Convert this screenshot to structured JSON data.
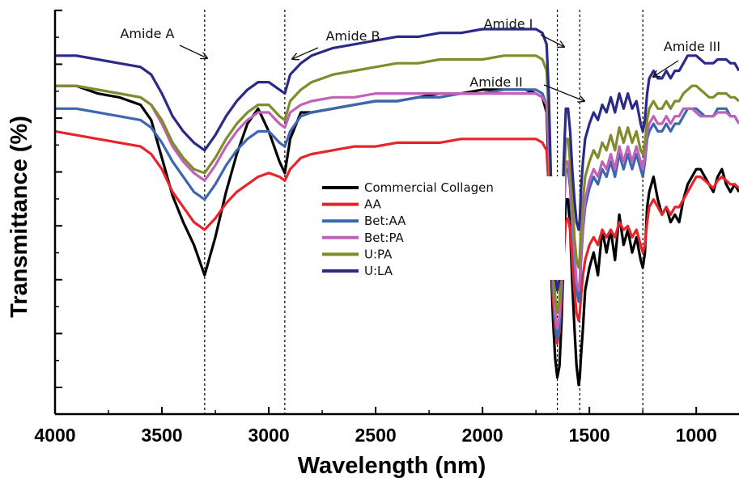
{
  "chart_data": {
    "type": "line",
    "title": "",
    "xlabel": "Wavelength (nm)",
    "ylabel": "Transmittance (%)",
    "xlim": [
      4000,
      800
    ],
    "ylim": [
      0,
      100
    ],
    "xticks": [
      4000,
      3500,
      3000,
      2500,
      2000,
      1500,
      1000
    ],
    "y_tick_labels_shown": false,
    "grid": false,
    "legend_position": "center",
    "reference_lines": [
      3300,
      2925,
      1650,
      1545,
      1250
    ],
    "annotations": [
      {
        "text": "Amide A",
        "at_x": 3300
      },
      {
        "text": "Amide B",
        "at_x": 2925
      },
      {
        "text": "Amide I",
        "at_x": 1650
      },
      {
        "text": "Amide II",
        "at_x": 1545
      },
      {
        "text": "Amide III",
        "at_x": 1250
      }
    ],
    "series": [
      {
        "name": "Commercial Collagen",
        "color": "#000000",
        "x": [
          4000,
          3900,
          3800,
          3700,
          3600,
          3550,
          3500,
          3450,
          3400,
          3350,
          3300,
          3250,
          3200,
          3150,
          3100,
          3050,
          3000,
          2950,
          2925,
          2900,
          2850,
          2800,
          2700,
          2600,
          2500,
          2400,
          2300,
          2200,
          2100,
          2000,
          1900,
          1800,
          1750,
          1720,
          1700,
          1690,
          1680,
          1670,
          1660,
          1650,
          1640,
          1630,
          1620,
          1610,
          1600,
          1590,
          1580,
          1570,
          1560,
          1550,
          1545,
          1540,
          1530,
          1520,
          1500,
          1480,
          1460,
          1440,
          1420,
          1400,
          1380,
          1360,
          1340,
          1320,
          1300,
          1280,
          1260,
          1250,
          1240,
          1230,
          1220,
          1200,
          1180,
          1160,
          1140,
          1120,
          1100,
          1080,
          1060,
          1040,
          1020,
          1000,
          980,
          960,
          940,
          920,
          900,
          880,
          860,
          840,
          820,
          800
        ],
        "y": [
          82,
          82,
          80,
          79,
          77,
          73,
          63,
          53,
          46,
          40,
          32,
          42,
          54,
          64,
          72,
          76,
          70,
          62,
          59,
          68,
          75,
          75,
          76,
          77,
          78,
          78,
          79,
          80,
          80,
          81,
          81,
          81,
          80,
          79,
          75,
          60,
          35,
          20,
          10,
          5,
          8,
          20,
          38,
          52,
          52,
          44,
          30,
          18,
          8,
          3,
          5,
          10,
          18,
          28,
          34,
          38,
          32,
          44,
          38,
          44,
          36,
          48,
          40,
          44,
          38,
          42,
          36,
          34,
          38,
          50,
          54,
          58,
          52,
          48,
          50,
          46,
          48,
          46,
          52,
          56,
          58,
          60,
          60,
          58,
          56,
          54,
          58,
          60,
          56,
          54,
          56,
          54
        ]
      },
      {
        "name": "AA",
        "color": "#e8232a",
        "x": [
          4000,
          3900,
          3800,
          3700,
          3600,
          3550,
          3500,
          3450,
          3400,
          3350,
          3300,
          3250,
          3200,
          3150,
          3100,
          3050,
          3000,
          2950,
          2925,
          2900,
          2850,
          2800,
          2700,
          2600,
          2500,
          2400,
          2300,
          2200,
          2100,
          2000,
          1900,
          1800,
          1750,
          1720,
          1700,
          1690,
          1680,
          1670,
          1660,
          1650,
          1640,
          1630,
          1620,
          1610,
          1600,
          1590,
          1580,
          1570,
          1560,
          1550,
          1545,
          1540,
          1530,
          1520,
          1500,
          1480,
          1460,
          1440,
          1420,
          1400,
          1380,
          1360,
          1340,
          1320,
          1300,
          1280,
          1260,
          1250,
          1240,
          1230,
          1220,
          1200,
          1180,
          1160,
          1140,
          1120,
          1100,
          1080,
          1060,
          1040,
          1020,
          1000,
          980,
          960,
          940,
          920,
          900,
          880,
          860,
          840,
          820,
          800
        ],
        "y": [
          70,
          69,
          68,
          67,
          66,
          64,
          60,
          54,
          50,
          46,
          44,
          47,
          51,
          54,
          56,
          58,
          59,
          58,
          57,
          60,
          63,
          64,
          65,
          66,
          66,
          67,
          67,
          67,
          68,
          68,
          68,
          68,
          68,
          67,
          65,
          55,
          38,
          26,
          18,
          14,
          17,
          26,
          38,
          46,
          47,
          44,
          36,
          28,
          22,
          20,
          22,
          26,
          32,
          36,
          40,
          42,
          40,
          44,
          42,
          44,
          42,
          46,
          44,
          45,
          42,
          44,
          40,
          38,
          40,
          46,
          50,
          52,
          50,
          48,
          50,
          48,
          50,
          50,
          52,
          54,
          56,
          58,
          58,
          57,
          56,
          55,
          57,
          58,
          57,
          56,
          56,
          55
        ]
      },
      {
        "name": "Bet:AA",
        "color": "#3c67b0",
        "x": [
          4000,
          3900,
          3800,
          3700,
          3600,
          3550,
          3500,
          3450,
          3400,
          3350,
          3300,
          3250,
          3200,
          3150,
          3100,
          3050,
          3000,
          2950,
          2925,
          2900,
          2850,
          2800,
          2700,
          2600,
          2500,
          2400,
          2300,
          2200,
          2100,
          2000,
          1900,
          1800,
          1750,
          1720,
          1700,
          1690,
          1680,
          1670,
          1660,
          1650,
          1640,
          1630,
          1620,
          1610,
          1600,
          1590,
          1580,
          1570,
          1560,
          1550,
          1545,
          1540,
          1530,
          1520,
          1500,
          1480,
          1460,
          1440,
          1420,
          1400,
          1380,
          1360,
          1340,
          1320,
          1300,
          1280,
          1260,
          1250,
          1240,
          1230,
          1220,
          1200,
          1180,
          1160,
          1140,
          1120,
          1100,
          1080,
          1060,
          1040,
          1020,
          1000,
          980,
          960,
          940,
          920,
          900,
          880,
          860,
          840,
          820,
          800
        ],
        "y": [
          76,
          76,
          75,
          74,
          73,
          71,
          67,
          62,
          58,
          54,
          52,
          56,
          61,
          65,
          68,
          70,
          70,
          67,
          66,
          70,
          74,
          75,
          76,
          77,
          78,
          78,
          79,
          79,
          80,
          80,
          81,
          81,
          81,
          80,
          77,
          65,
          45,
          30,
          20,
          15,
          18,
          30,
          48,
          60,
          60,
          55,
          45,
          35,
          28,
          25,
          28,
          35,
          44,
          50,
          55,
          58,
          56,
          60,
          58,
          62,
          58,
          64,
          60,
          64,
          60,
          64,
          60,
          58,
          62,
          68,
          70,
          72,
          70,
          70,
          72,
          70,
          72,
          72,
          74,
          76,
          76,
          76,
          75,
          74,
          74,
          74,
          76,
          76,
          76,
          74,
          74,
          72
        ]
      },
      {
        "name": "Bet:PA",
        "color": "#c161b8",
        "x": [
          4000,
          3900,
          3800,
          3700,
          3600,
          3550,
          3500,
          3450,
          3400,
          3350,
          3300,
          3250,
          3200,
          3150,
          3100,
          3050,
          3000,
          2950,
          2925,
          2900,
          2850,
          2800,
          2700,
          2600,
          2500,
          2400,
          2300,
          2200,
          2100,
          2000,
          1900,
          1800,
          1750,
          1720,
          1700,
          1690,
          1680,
          1670,
          1660,
          1650,
          1640,
          1630,
          1620,
          1610,
          1600,
          1590,
          1580,
          1570,
          1560,
          1550,
          1545,
          1540,
          1530,
          1520,
          1500,
          1480,
          1460,
          1440,
          1420,
          1400,
          1380,
          1360,
          1340,
          1320,
          1300,
          1280,
          1260,
          1250,
          1240,
          1230,
          1220,
          1200,
          1180,
          1160,
          1140,
          1120,
          1100,
          1080,
          1060,
          1040,
          1020,
          1000,
          980,
          960,
          940,
          920,
          900,
          880,
          860,
          840,
          820,
          800
        ],
        "y": [
          82,
          82,
          81,
          80,
          79,
          77,
          72,
          66,
          62,
          59,
          57,
          61,
          66,
          70,
          73,
          75,
          75,
          72,
          71,
          75,
          77,
          78,
          79,
          79,
          80,
          80,
          80,
          80,
          80,
          80,
          80,
          80,
          80,
          79,
          77,
          66,
          46,
          32,
          22,
          18,
          21,
          32,
          50,
          62,
          62,
          57,
          47,
          38,
          30,
          28,
          31,
          38,
          46,
          52,
          57,
          60,
          58,
          62,
          60,
          64,
          60,
          66,
          62,
          66,
          62,
          66,
          62,
          60,
          64,
          70,
          72,
          74,
          72,
          72,
          74,
          72,
          74,
          74,
          76,
          76,
          76,
          75,
          74,
          74,
          74,
          74,
          75,
          75,
          75,
          74,
          74,
          72
        ]
      },
      {
        "name": "U:PA",
        "color": "#808c2c",
        "x": [
          4000,
          3900,
          3800,
          3700,
          3600,
          3550,
          3500,
          3450,
          3400,
          3350,
          3300,
          3250,
          3200,
          3150,
          3100,
          3050,
          3000,
          2950,
          2925,
          2900,
          2850,
          2800,
          2700,
          2600,
          2500,
          2400,
          2300,
          2200,
          2100,
          2000,
          1900,
          1800,
          1750,
          1720,
          1700,
          1690,
          1680,
          1670,
          1660,
          1650,
          1640,
          1630,
          1620,
          1610,
          1600,
          1590,
          1580,
          1570,
          1560,
          1550,
          1545,
          1540,
          1530,
          1520,
          1500,
          1480,
          1460,
          1440,
          1420,
          1400,
          1380,
          1360,
          1340,
          1320,
          1300,
          1280,
          1260,
          1250,
          1240,
          1230,
          1220,
          1200,
          1180,
          1160,
          1140,
          1120,
          1100,
          1080,
          1060,
          1040,
          1020,
          1000,
          980,
          960,
          940,
          920,
          900,
          880,
          860,
          840,
          820,
          800
        ],
        "y": [
          82,
          82,
          81,
          80,
          79,
          77,
          73,
          67,
          63,
          60,
          59,
          63,
          68,
          72,
          75,
          77,
          77,
          74,
          73,
          78,
          81,
          83,
          85,
          86,
          87,
          88,
          88,
          89,
          89,
          89,
          90,
          90,
          90,
          89,
          86,
          74,
          52,
          36,
          26,
          22,
          25,
          38,
          56,
          68,
          68,
          62,
          52,
          42,
          36,
          34,
          37,
          44,
          52,
          58,
          62,
          65,
          63,
          67,
          65,
          69,
          65,
          71,
          67,
          71,
          67,
          70,
          65,
          64,
          67,
          73,
          76,
          78,
          76,
          76,
          78,
          76,
          78,
          78,
          80,
          81,
          82,
          82,
          81,
          80,
          79,
          79,
          80,
          80,
          80,
          79,
          79,
          78
        ]
      },
      {
        "name": "U:LA",
        "color": "#2b2a86",
        "x": [
          4000,
          3900,
          3800,
          3700,
          3600,
          3550,
          3500,
          3450,
          3400,
          3350,
          3300,
          3250,
          3200,
          3150,
          3100,
          3050,
          3000,
          2950,
          2925,
          2900,
          2850,
          2800,
          2700,
          2600,
          2500,
          2400,
          2300,
          2200,
          2100,
          2000,
          1900,
          1800,
          1750,
          1720,
          1700,
          1690,
          1680,
          1670,
          1660,
          1650,
          1640,
          1630,
          1620,
          1610,
          1600,
          1590,
          1580,
          1570,
          1560,
          1550,
          1545,
          1540,
          1530,
          1520,
          1500,
          1480,
          1460,
          1440,
          1420,
          1400,
          1380,
          1360,
          1340,
          1320,
          1300,
          1280,
          1260,
          1250,
          1240,
          1230,
          1220,
          1200,
          1180,
          1160,
          1140,
          1120,
          1100,
          1080,
          1060,
          1040,
          1020,
          1000,
          980,
          960,
          940,
          920,
          900,
          880,
          860,
          840,
          820,
          800
        ],
        "y": [
          90,
          90,
          89,
          88,
          87,
          85,
          80,
          74,
          70,
          67,
          65,
          69,
          74,
          78,
          81,
          83,
          83,
          81,
          80,
          85,
          88,
          90,
          92,
          93,
          94,
          95,
          95,
          96,
          96,
          97,
          97,
          97,
          97,
          96,
          93,
          80,
          58,
          42,
          32,
          28,
          31,
          44,
          62,
          76,
          76,
          70,
          60,
          52,
          46,
          44,
          47,
          54,
          62,
          68,
          72,
          75,
          73,
          77,
          75,
          79,
          75,
          80,
          76,
          80,
          76,
          78,
          72,
          70,
          73,
          80,
          84,
          86,
          84,
          84,
          86,
          84,
          86,
          86,
          88,
          90,
          90,
          90,
          89,
          88,
          88,
          88,
          89,
          89,
          89,
          88,
          88,
          86
        ]
      }
    ]
  }
}
